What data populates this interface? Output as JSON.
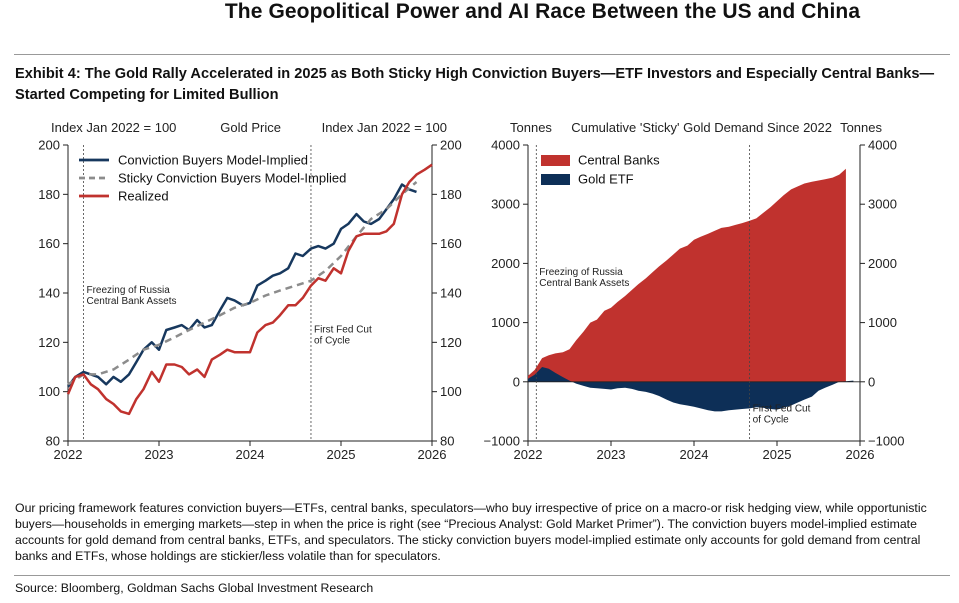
{
  "page_title": "The Geopolitical Power and AI Race Between the US and China",
  "exhibit_title": "Exhibit 4: The Gold Rally Accelerated in 2025 as Both Sticky High Conviction Buyers—ETF Investors and Especially Central Banks—Started Competing for Limited Bullion",
  "caption": "Our pricing framework features conviction buyers—ETFs, central banks, speculators—who buy irrespective of price on a macro-or risk hedging view, while opportunistic buyers—households in emerging markets—step in when the price is right (see “Precious Analyst: Gold Market Primer”). The conviction buyers model-implied estimate accounts for gold demand from central banks, ETFs, and speculators. The sticky conviction buyers model-implied estimate only accounts for gold demand from central banks and ETFs, whose holdings are stickier/less volatile than for speculators.",
  "source": "Source: Bloomberg, Goldman Sachs Global Investment Research",
  "chart_data": [
    {
      "type": "line",
      "title": "Gold Price",
      "ylabel_left": "Index Jan 2022 = 100",
      "ylabel_right": "Index Jan 2022 = 100",
      "xlim": [
        2022,
        2026
      ],
      "ylim": [
        80,
        200
      ],
      "x_ticks": [
        "2022",
        "2023",
        "2024",
        "2025",
        "2026"
      ],
      "y_ticks": [
        "80",
        "100",
        "120",
        "140",
        "160",
        "180",
        "200"
      ],
      "legend_position": "top-left",
      "annotations": [
        {
          "x": 2022.17,
          "label_lines": [
            "Freezing of Russia",
            "Central Bank Assets"
          ],
          "label_y": 140
        },
        {
          "x": 2024.67,
          "label_lines": [
            "First Fed Cut",
            "of Cycle"
          ],
          "label_y": 124
        }
      ],
      "series": [
        {
          "name": "Conviction Buyers Model-Implied",
          "color": "#17385e",
          "dash": "",
          "x": [
            2022.0,
            2022.08,
            2022.17,
            2022.25,
            2022.33,
            2022.42,
            2022.5,
            2022.58,
            2022.67,
            2022.75,
            2022.83,
            2022.92,
            2023.0,
            2023.08,
            2023.17,
            2023.25,
            2023.33,
            2023.42,
            2023.5,
            2023.58,
            2023.67,
            2023.75,
            2023.83,
            2023.92,
            2024.0,
            2024.08,
            2024.17,
            2024.25,
            2024.33,
            2024.42,
            2024.5,
            2024.58,
            2024.67,
            2024.75,
            2024.83,
            2024.92,
            2025.0,
            2025.08,
            2025.17,
            2025.25,
            2025.33,
            2025.42,
            2025.5,
            2025.58,
            2025.67,
            2025.75,
            2025.83
          ],
          "y": [
            102,
            106,
            108,
            107,
            106,
            103,
            106,
            104,
            107,
            112,
            117,
            120,
            117,
            125,
            126,
            127,
            125,
            129,
            126,
            127,
            133,
            138,
            137,
            135,
            136,
            143,
            145,
            147,
            148,
            150,
            156,
            155,
            158,
            159,
            158,
            160,
            166,
            168,
            172,
            169,
            168,
            170,
            174,
            178,
            184,
            182,
            181
          ]
        },
        {
          "name": "Sticky Conviction Buyers Model-Implied",
          "color": "#8c8c8c",
          "dash": "7,5",
          "x": [
            2022.0,
            2022.17,
            2022.33,
            2022.5,
            2022.67,
            2022.83,
            2023.0,
            2023.17,
            2023.33,
            2023.5,
            2023.67,
            2023.83,
            2024.0,
            2024.17,
            2024.33,
            2024.5,
            2024.67,
            2024.83,
            2025.0,
            2025.17,
            2025.33,
            2025.5,
            2025.67,
            2025.83
          ],
          "y": [
            103,
            107,
            107,
            109,
            113,
            117,
            119,
            122,
            125,
            128,
            131,
            134,
            136,
            139,
            141,
            143,
            145,
            149,
            155,
            163,
            170,
            174,
            180,
            185
          ]
        },
        {
          "name": "Realized",
          "color": "#c0322e",
          "dash": "",
          "x": [
            2022.0,
            2022.08,
            2022.17,
            2022.25,
            2022.33,
            2022.42,
            2022.5,
            2022.58,
            2022.67,
            2022.75,
            2022.83,
            2022.92,
            2023.0,
            2023.08,
            2023.17,
            2023.25,
            2023.33,
            2023.42,
            2023.5,
            2023.58,
            2023.67,
            2023.75,
            2023.83,
            2023.92,
            2024.0,
            2024.08,
            2024.17,
            2024.25,
            2024.33,
            2024.42,
            2024.5,
            2024.58,
            2024.67,
            2024.75,
            2024.83,
            2024.92,
            2025.0,
            2025.08,
            2025.17,
            2025.25,
            2025.33,
            2025.42,
            2025.5,
            2025.58,
            2025.67,
            2025.75,
            2025.83,
            2025.92,
            2026.0
          ],
          "y": [
            99,
            106,
            107,
            103,
            101,
            97,
            95,
            92,
            91,
            97,
            101,
            108,
            104,
            111,
            111,
            110,
            107,
            109,
            106,
            113,
            115,
            117,
            116,
            116,
            116,
            124,
            127,
            128,
            131,
            135,
            135,
            138,
            143,
            146,
            145,
            150,
            148,
            157,
            163,
            164,
            164,
            164,
            165,
            168,
            180,
            185,
            188,
            190,
            192
          ]
        }
      ]
    },
    {
      "type": "area",
      "title": "Cumulative 'Sticky' Gold Demand Since 2022",
      "ylabel_left": "Tonnes",
      "ylabel_right": "Tonnes",
      "xlim": [
        2022,
        2026
      ],
      "ylim": [
        -1000,
        4000
      ],
      "x_ticks": [
        "2022",
        "2023",
        "2024",
        "2025",
        "2026"
      ],
      "y_ticks_left": [
        "−1000",
        "0",
        "1000",
        "2000",
        "3000",
        "4000"
      ],
      "y_ticks_right": [
        "−1000",
        "0",
        "1000",
        "2000",
        "3000",
        "4000"
      ],
      "legend_position": "top-left",
      "annotations": [
        {
          "x": 2022.1,
          "label_lines": [
            "Freezing of Russia",
            "Central Bank Assets"
          ],
          "label_y": 1800
        },
        {
          "x": 2024.67,
          "label_lines": [
            "First Fed Cut",
            "of Cycle"
          ],
          "label_y": -500
        }
      ],
      "series": [
        {
          "name": "Central Banks",
          "color": "#c0322e",
          "x": [
            2022.0,
            2022.08,
            2022.17,
            2022.25,
            2022.33,
            2022.42,
            2022.5,
            2022.58,
            2022.67,
            2022.75,
            2022.83,
            2022.92,
            2023.0,
            2023.08,
            2023.17,
            2023.25,
            2023.33,
            2023.42,
            2023.5,
            2023.58,
            2023.67,
            2023.75,
            2023.83,
            2023.92,
            2024.0,
            2024.08,
            2024.17,
            2024.25,
            2024.33,
            2024.42,
            2024.5,
            2024.58,
            2024.67,
            2024.75,
            2024.83,
            2024.92,
            2025.0,
            2025.08,
            2025.17,
            2025.25,
            2025.33,
            2025.42,
            2025.5,
            2025.58,
            2025.67,
            2025.75,
            2025.83
          ],
          "y": [
            100,
            200,
            400,
            450,
            480,
            500,
            550,
            700,
            850,
            1000,
            1050,
            1200,
            1250,
            1350,
            1450,
            1550,
            1650,
            1750,
            1850,
            1950,
            2050,
            2150,
            2250,
            2300,
            2400,
            2450,
            2500,
            2550,
            2600,
            2620,
            2650,
            2680,
            2720,
            2760,
            2850,
            2950,
            3050,
            3150,
            3250,
            3300,
            3350,
            3380,
            3400,
            3420,
            3450,
            3500,
            3600
          ]
        },
        {
          "name": "Gold ETF",
          "color": "#0d2f57",
          "x": [
            2022.0,
            2022.08,
            2022.17,
            2022.25,
            2022.33,
            2022.42,
            2022.5,
            2022.58,
            2022.67,
            2022.75,
            2022.83,
            2022.92,
            2023.0,
            2023.08,
            2023.17,
            2023.25,
            2023.33,
            2023.42,
            2023.5,
            2023.58,
            2023.67,
            2023.75,
            2023.83,
            2023.92,
            2024.0,
            2024.08,
            2024.17,
            2024.25,
            2024.33,
            2024.42,
            2024.5,
            2024.58,
            2024.67,
            2024.75,
            2024.83,
            2024.92,
            2025.0,
            2025.08,
            2025.17,
            2025.25,
            2025.33,
            2025.42,
            2025.5,
            2025.58,
            2025.67,
            2025.75,
            2025.83,
            2025.92
          ],
          "y": [
            50,
            120,
            250,
            220,
            150,
            80,
            20,
            -30,
            -70,
            -100,
            -110,
            -120,
            -130,
            -110,
            -100,
            -120,
            -150,
            -170,
            -200,
            -240,
            -300,
            -350,
            -380,
            -400,
            -420,
            -450,
            -480,
            -500,
            -500,
            -480,
            -470,
            -460,
            -450,
            -430,
            -440,
            -460,
            -470,
            -440,
            -400,
            -350,
            -300,
            -250,
            -150,
            -100,
            -50,
            0,
            10,
            20
          ]
        }
      ]
    }
  ]
}
